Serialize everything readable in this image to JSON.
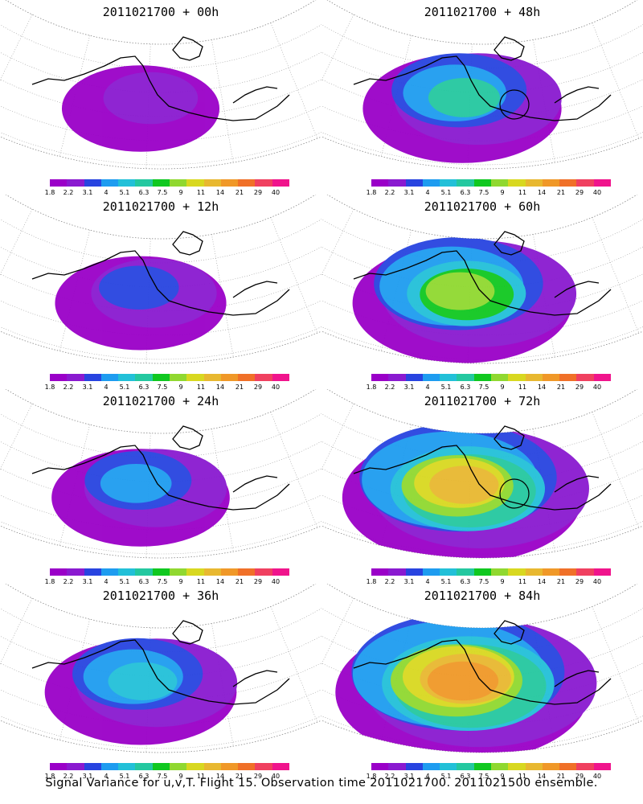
{
  "figure": {
    "caption": "Signal Variance for u,v,T. Flight 15. Observation time 2011021700. 2011021500 ensemble."
  },
  "colorbar": {
    "colors": [
      "#9a00c8",
      "#8a1ad0",
      "#2844e0",
      "#1e9cf0",
      "#22c0d8",
      "#24c8a0",
      "#10c820",
      "#90d830",
      "#d8d820",
      "#e8b830",
      "#f09828",
      "#f07028",
      "#f04060",
      "#f0148c"
    ],
    "ticks": [
      "1.8",
      "2.2",
      "3.1",
      "4",
      "5.1",
      "6.3",
      "7.5",
      "9",
      "11",
      "14",
      "21",
      "29",
      "40"
    ]
  },
  "panels": [
    {
      "title": "2011021700 + 00h",
      "intensity": 0.15,
      "circle": false
    },
    {
      "title": "2011021700 + 48h",
      "intensity": 0.45,
      "circle": true
    },
    {
      "title": "2011021700 + 12h",
      "intensity": 0.25,
      "circle": false
    },
    {
      "title": "2011021700 + 60h",
      "intensity": 0.6,
      "circle": false
    },
    {
      "title": "2011021700 + 24h",
      "intensity": 0.3,
      "circle": false
    },
    {
      "title": "2011021700 + 72h",
      "intensity": 0.75,
      "circle": true
    },
    {
      "title": "2011021700 + 36h",
      "intensity": 0.4,
      "circle": false
    },
    {
      "title": "2011021700 + 84h",
      "intensity": 0.85,
      "circle": false
    }
  ]
}
